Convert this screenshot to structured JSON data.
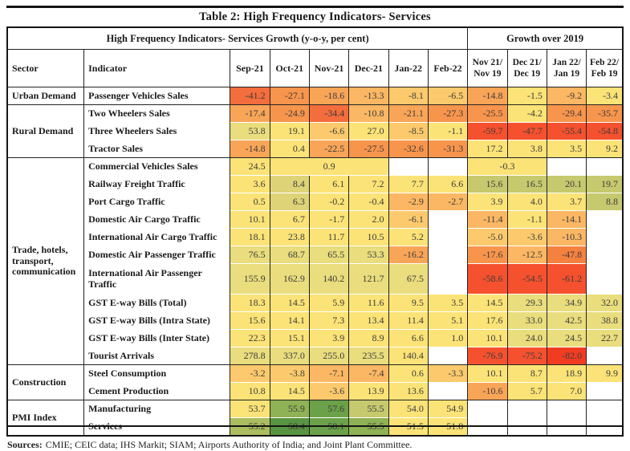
{
  "title": "Table 2: High Frequency Indicators- Services",
  "header": {
    "left_span": "High Frequency Indicators- Services Growth (y-o-y, per cent)",
    "right_span": "Growth over 2019",
    "sector": "Sector",
    "indicator": "Indicator",
    "months": [
      "Sep-21",
      "Oct-21",
      "Nov-21",
      "Dec-21",
      "Jan-22",
      "Feb-22"
    ],
    "growth_cols": [
      {
        "l1": "Nov 21/",
        "l2": "Nov 19"
      },
      {
        "l1": "Dec 21/",
        "l2": "Dec 19"
      },
      {
        "l1": "Jan 22/",
        "l2": "Jan 19"
      },
      {
        "l1": "Feb 22/",
        "l2": "Feb 19"
      }
    ]
  },
  "palette": {
    "w": "#ffffff",
    "r1": "#f23c22",
    "r2": "#f5512e",
    "r3": "#f46d3c",
    "o1": "#f5813f",
    "o2": "#f8954c",
    "o3": "#f9a557",
    "o4": "#fbb763",
    "o5": "#fcca6d",
    "ye": "#fbe377",
    "ye2": "#ded377",
    "kh": "#e9dd7d",
    "ol": "#c6c96e",
    "g1": "#abbd5f",
    "g2": "#8fb254",
    "g3": "#6ba149",
    "g4": "#589441"
  },
  "groups": [
    {
      "sector": "Urban Demand",
      "rows": [
        {
          "indicator": "Passenger Vehicles Sales",
          "cells": [
            {
              "v": "-41.2",
              "c": "r3"
            },
            {
              "v": "-27.1",
              "c": "o2"
            },
            {
              "v": "-18.6",
              "c": "o3"
            },
            {
              "v": "-13.3",
              "c": "o4"
            },
            {
              "v": "-8.1",
              "c": "o5"
            },
            {
              "v": "-6.5",
              "c": "o5"
            },
            {
              "v": "-14.8",
              "c": "o3"
            },
            {
              "v": "-1.5",
              "c": "ye"
            },
            {
              "v": "-9.2",
              "c": "o4"
            },
            {
              "v": "-3.4",
              "c": "ye"
            }
          ]
        }
      ]
    },
    {
      "sector": "Rural Demand",
      "rows": [
        {
          "indicator": "Two Wheelers Sales",
          "cells": [
            {
              "v": "-17.4",
              "c": "o3"
            },
            {
              "v": "-24.9",
              "c": "o2"
            },
            {
              "v": "-34.4",
              "c": "r3"
            },
            {
              "v": "-10.8",
              "c": "o4"
            },
            {
              "v": "-21.1",
              "c": "o3"
            },
            {
              "v": "-27.3",
              "c": "o2"
            },
            {
              "v": "-25.5",
              "c": "o2"
            },
            {
              "v": "-4.2",
              "c": "ye"
            },
            {
              "v": "-29.4",
              "c": "o2"
            },
            {
              "v": "-35.7",
              "c": "o2"
            }
          ]
        },
        {
          "indicator": "Three Wheelers Sales",
          "cells": [
            {
              "v": "53.8",
              "c": "kh"
            },
            {
              "v": "19.1",
              "c": "ye"
            },
            {
              "v": "-6.6",
              "c": "o5"
            },
            {
              "v": "27.0",
              "c": "ye"
            },
            {
              "v": "-8.5",
              "c": "o5"
            },
            {
              "v": "-1.1",
              "c": "ye"
            },
            {
              "v": "-59.7",
              "c": "r2"
            },
            {
              "v": "-47.7",
              "c": "r2"
            },
            {
              "v": "-55.4",
              "c": "r2"
            },
            {
              "v": "-54.8",
              "c": "r2"
            }
          ]
        },
        {
          "indicator": "Tractor Sales",
          "cells": [
            {
              "v": "-14.8",
              "c": "o3"
            },
            {
              "v": "0.4",
              "c": "ye"
            },
            {
              "v": "-22.5",
              "c": "o3"
            },
            {
              "v": "-27.5",
              "c": "o2"
            },
            {
              "v": "-32.6",
              "c": "o2"
            },
            {
              "v": "-31.3",
              "c": "o2"
            },
            {
              "v": "17.2",
              "c": "ye"
            },
            {
              "v": "3.8",
              "c": "ye"
            },
            {
              "v": "3.5",
              "c": "ye"
            },
            {
              "v": "9.2",
              "c": "ye"
            }
          ]
        }
      ]
    },
    {
      "sector": "Trade, hotels, transport, communication",
      "rows": [
        {
          "indicator": "Commercial Vehicles Sales",
          "cells": [
            {
              "v": "24.5",
              "c": "ye"
            },
            {
              "v": "0.9",
              "c": "ye",
              "span": 3
            },
            {
              "v": "",
              "c": "w"
            },
            {
              "v": "",
              "c": "w"
            },
            {
              "v": "-0.3",
              "c": "ye",
              "span": 2
            },
            {
              "v": "",
              "c": "w"
            },
            {
              "v": "",
              "c": "w"
            }
          ]
        },
        {
          "indicator": "Railway Freight Traffic",
          "cells": [
            {
              "v": "3.6",
              "c": "ye"
            },
            {
              "v": "8.4",
              "c": "ye2"
            },
            {
              "v": "6.1",
              "c": "ye"
            },
            {
              "v": "7.2",
              "c": "ye"
            },
            {
              "v": "7.7",
              "c": "ye"
            },
            {
              "v": "6.6",
              "c": "ye"
            },
            {
              "v": "15.6",
              "c": "ol"
            },
            {
              "v": "16.5",
              "c": "ol"
            },
            {
              "v": "20.1",
              "c": "ol"
            },
            {
              "v": "19.7",
              "c": "ol"
            }
          ]
        },
        {
          "indicator": "Port Cargo Traffic",
          "cells": [
            {
              "v": "0.5",
              "c": "ye"
            },
            {
              "v": "6.3",
              "c": "ye2"
            },
            {
              "v": "-0.2",
              "c": "ye"
            },
            {
              "v": "-0.4",
              "c": "ye"
            },
            {
              "v": "-2.9",
              "c": "o4"
            },
            {
              "v": "-2.7",
              "c": "o4"
            },
            {
              "v": "3.9",
              "c": "ye"
            },
            {
              "v": "4.0",
              "c": "ye"
            },
            {
              "v": "3.7",
              "c": "ye"
            },
            {
              "v": "8.8",
              "c": "ol"
            }
          ]
        },
        {
          "indicator": "Domestic Air Cargo Traffic",
          "cells": [
            {
              "v": "10.1",
              "c": "ye"
            },
            {
              "v": "6.7",
              "c": "ye"
            },
            {
              "v": "-1.7",
              "c": "ye"
            },
            {
              "v": "2.0",
              "c": "ye"
            },
            {
              "v": "-6.1",
              "c": "o5"
            },
            {
              "v": "",
              "c": "w"
            },
            {
              "v": "-11.4",
              "c": "o4"
            },
            {
              "v": "-1.1",
              "c": "ye"
            },
            {
              "v": "-14.1",
              "c": "o4"
            },
            {
              "v": "",
              "c": "w"
            }
          ]
        },
        {
          "indicator": "International Air Cargo Traffic",
          "cells": [
            {
              "v": "18.1",
              "c": "ye"
            },
            {
              "v": "23.8",
              "c": "ye"
            },
            {
              "v": "11.7",
              "c": "ye"
            },
            {
              "v": "10.5",
              "c": "ye"
            },
            {
              "v": "5.2",
              "c": "ye"
            },
            {
              "v": "",
              "c": "w"
            },
            {
              "v": "-5.0",
              "c": "o5"
            },
            {
              "v": "-3.6",
              "c": "o5"
            },
            {
              "v": "-10.3",
              "c": "o4"
            },
            {
              "v": "",
              "c": "w"
            }
          ]
        },
        {
          "indicator": "Domestic Air Passenger Traffic",
          "cells": [
            {
              "v": "76.5",
              "c": "kh"
            },
            {
              "v": "68.7",
              "c": "kh"
            },
            {
              "v": "65.5",
              "c": "kh"
            },
            {
              "v": "53.3",
              "c": "kh"
            },
            {
              "v": "-16.2",
              "c": "o3"
            },
            {
              "v": "",
              "c": "w"
            },
            {
              "v": "-17.6",
              "c": "o2"
            },
            {
              "v": "-12.5",
              "c": "o4"
            },
            {
              "v": "-47.8",
              "c": "o1"
            },
            {
              "v": "",
              "c": "w"
            }
          ]
        },
        {
          "indicator": "International Air Passenger Traffic",
          "tall": true,
          "cells": [
            {
              "v": "155.9",
              "c": "kh"
            },
            {
              "v": "162.9",
              "c": "kh"
            },
            {
              "v": "140.2",
              "c": "kh"
            },
            {
              "v": "121.7",
              "c": "kh"
            },
            {
              "v": "67.5",
              "c": "kh"
            },
            {
              "v": "",
              "c": "w"
            },
            {
              "v": "-58.6",
              "c": "r2"
            },
            {
              "v": "-54.5",
              "c": "r2"
            },
            {
              "v": "-61.2",
              "c": "r2"
            },
            {
              "v": "",
              "c": "w"
            }
          ]
        },
        {
          "indicator": "GST E-way Bills (Total)",
          "cells": [
            {
              "v": "18.3",
              "c": "ye"
            },
            {
              "v": "14.5",
              "c": "ye"
            },
            {
              "v": "5.9",
              "c": "ye"
            },
            {
              "v": "11.6",
              "c": "ye"
            },
            {
              "v": "9.5",
              "c": "ye"
            },
            {
              "v": "3.5",
              "c": "ye"
            },
            {
              "v": "14.5",
              "c": "ye"
            },
            {
              "v": "29.3",
              "c": "kh"
            },
            {
              "v": "34.9",
              "c": "kh"
            },
            {
              "v": "32.0",
              "c": "kh"
            }
          ]
        },
        {
          "indicator": "GST E-way Bills (Intra State)",
          "cells": [
            {
              "v": "15.6",
              "c": "ye"
            },
            {
              "v": "14.1",
              "c": "ye"
            },
            {
              "v": "7.3",
              "c": "ye"
            },
            {
              "v": "13.4",
              "c": "ye"
            },
            {
              "v": "11.4",
              "c": "ye"
            },
            {
              "v": "5.1",
              "c": "ye"
            },
            {
              "v": "17.6",
              "c": "ye"
            },
            {
              "v": "33.0",
              "c": "kh"
            },
            {
              "v": "42.5",
              "c": "kh"
            },
            {
              "v": "38.8",
              "c": "kh"
            }
          ]
        },
        {
          "indicator": "GST E-way Bills (Inter State)",
          "cells": [
            {
              "v": "22.3",
              "c": "ye"
            },
            {
              "v": "15.1",
              "c": "ye"
            },
            {
              "v": "3.9",
              "c": "ye"
            },
            {
              "v": "8.9",
              "c": "ye"
            },
            {
              "v": "6.6",
              "c": "ye"
            },
            {
              "v": "1.0",
              "c": "ye"
            },
            {
              "v": "10.1",
              "c": "ye"
            },
            {
              "v": "24.0",
              "c": "kh"
            },
            {
              "v": "24.5",
              "c": "kh"
            },
            {
              "v": "22.7",
              "c": "kh"
            }
          ]
        },
        {
          "indicator": "Tourist Arrivals",
          "cells": [
            {
              "v": "278.8",
              "c": "kh"
            },
            {
              "v": "337.0",
              "c": "kh"
            },
            {
              "v": "255.0",
              "c": "kh"
            },
            {
              "v": "235.5",
              "c": "kh"
            },
            {
              "v": "140.4",
              "c": "ye"
            },
            {
              "v": "",
              "c": "w"
            },
            {
              "v": "-76.9",
              "c": "r2"
            },
            {
              "v": "-75.2",
              "c": "r2"
            },
            {
              "v": "-82.0",
              "c": "r1"
            },
            {
              "v": "",
              "c": "w"
            }
          ]
        }
      ]
    },
    {
      "sector": "Construction",
      "rows": [
        {
          "indicator": "Steel Consumption",
          "cells": [
            {
              "v": "-3.2",
              "c": "o5"
            },
            {
              "v": "-3.8",
              "c": "o5"
            },
            {
              "v": "-7.1",
              "c": "o4"
            },
            {
              "v": "-7.4",
              "c": "o4"
            },
            {
              "v": "0.6",
              "c": "ye"
            },
            {
              "v": "-3.3",
              "c": "o5"
            },
            {
              "v": "10.1",
              "c": "ye"
            },
            {
              "v": "8.7",
              "c": "ye"
            },
            {
              "v": "18.9",
              "c": "ye"
            },
            {
              "v": "9.9",
              "c": "ye"
            }
          ]
        },
        {
          "indicator": "Cement Production",
          "cells": [
            {
              "v": "10.8",
              "c": "ye"
            },
            {
              "v": "14.5",
              "c": "ye"
            },
            {
              "v": "-3.6",
              "c": "o5"
            },
            {
              "v": "13.9",
              "c": "ye"
            },
            {
              "v": "13.6",
              "c": "ye"
            },
            {
              "v": "",
              "c": "w"
            },
            {
              "v": "-10.6",
              "c": "o3"
            },
            {
              "v": "5.7",
              "c": "ye"
            },
            {
              "v": "7.0",
              "c": "ye"
            },
            {
              "v": "",
              "c": "w"
            }
          ]
        }
      ]
    },
    {
      "sector": "PMI Index",
      "rows": [
        {
          "indicator": "Manufacturing",
          "cells": [
            {
              "v": "53.7",
              "c": "ye"
            },
            {
              "v": "55.9",
              "c": "g2"
            },
            {
              "v": "57.6",
              "c": "g3"
            },
            {
              "v": "55.5",
              "c": "ol"
            },
            {
              "v": "54.0",
              "c": "ye"
            },
            {
              "v": "54.9",
              "c": "ye"
            },
            {
              "v": "",
              "c": "w"
            },
            {
              "v": "",
              "c": "w"
            },
            {
              "v": "",
              "c": "w"
            },
            {
              "v": "",
              "c": "w"
            }
          ]
        },
        {
          "indicator": "Services",
          "cells": [
            {
              "v": "55.2",
              "c": "g1"
            },
            {
              "v": "58.4",
              "c": "g4"
            },
            {
              "v": "58.1",
              "c": "g3"
            },
            {
              "v": "55.5",
              "c": "g2"
            },
            {
              "v": "51.5",
              "c": "ye"
            },
            {
              "v": "51.8",
              "c": "ye"
            },
            {
              "v": "",
              "c": "w"
            },
            {
              "v": "",
              "c": "w"
            },
            {
              "v": "",
              "c": "w"
            },
            {
              "v": "",
              "c": "w"
            }
          ]
        }
      ]
    }
  ],
  "footer": {
    "label": "Sources:",
    "text": "CMIE; CEIC data; IHS Markit; SIAM; Airports Authority of India; and Joint Plant Committee."
  }
}
